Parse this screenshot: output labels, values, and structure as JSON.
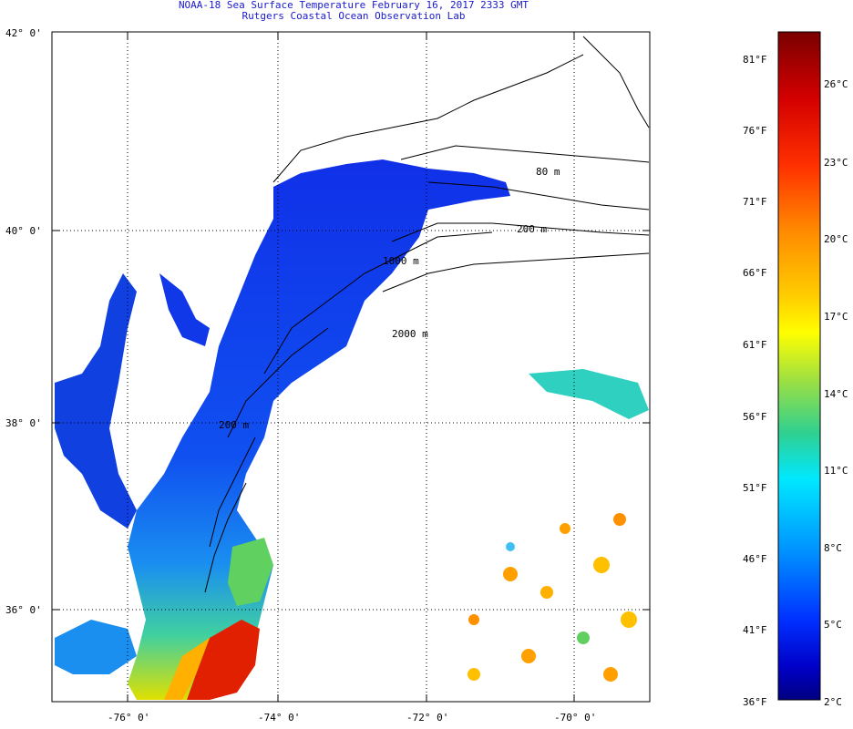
{
  "title_line1": "NOAA-18 Sea Surface Temperature February 16, 2017 2333 GMT",
  "title_line2": "Rutgers Coastal Ocean Observation Lab",
  "lat_labels": [
    "42° 0'",
    "40° 0'",
    "38° 0'",
    "36° 0'"
  ],
  "lon_labels": [
    "-76° 0'",
    "-74° 0'",
    "-72° 0'",
    "-70° 0'"
  ],
  "contour_labels": [
    "80 m",
    "200 m",
    "1000 m",
    "2000 m",
    "200 m"
  ],
  "colorbar": {
    "colors_top_to_bottom": [
      "#8b0000",
      "#c40000",
      "#ff2000",
      "#ff6a00",
      "#ffa500",
      "#ffd200",
      "#ffff00",
      "#b6ec2a",
      "#5fd35f",
      "#22d0b0",
      "#00e0ff",
      "#00b0ff",
      "#0078ff",
      "#0040ff",
      "#0000e0",
      "#00008b"
    ],
    "fahrenheit": [
      "81°F",
      "76°F",
      "71°F",
      "66°F",
      "61°F",
      "56°F",
      "51°F",
      "46°F",
      "41°F",
      "36°F"
    ],
    "celsius": [
      "26°C",
      "23°C",
      "20°C",
      "17°C",
      "14°C",
      "11°C",
      "8°C",
      "5°C",
      "2°C"
    ]
  }
}
